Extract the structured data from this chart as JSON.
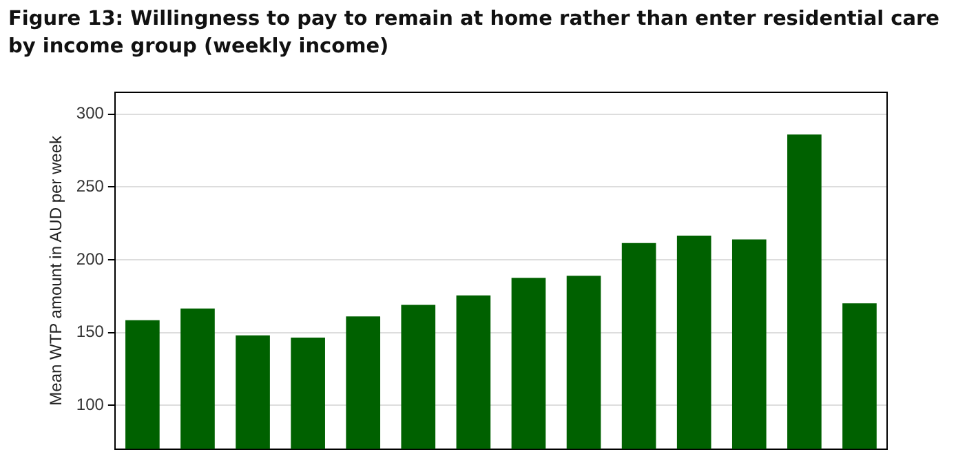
{
  "chart_data": {
    "type": "bar",
    "title": "Figure 13: Willingness to pay to remain at home rather than enter residential care by income group (weekly income)",
    "ylabel": "Mean WTP amount in AUD per week",
    "categories": [
      null,
      null,
      null,
      null,
      null,
      null,
      null,
      null,
      null,
      null,
      null,
      null,
      null,
      null
    ],
    "values": [
      158.5,
      166.5,
      148,
      146.5,
      161,
      169,
      175.5,
      187.5,
      189,
      211.5,
      216.5,
      214,
      286,
      170
    ],
    "color": "#006100",
    "ylim": [
      70,
      315
    ],
    "yticks": [
      100,
      150,
      200,
      250,
      300
    ],
    "grid": "y"
  }
}
